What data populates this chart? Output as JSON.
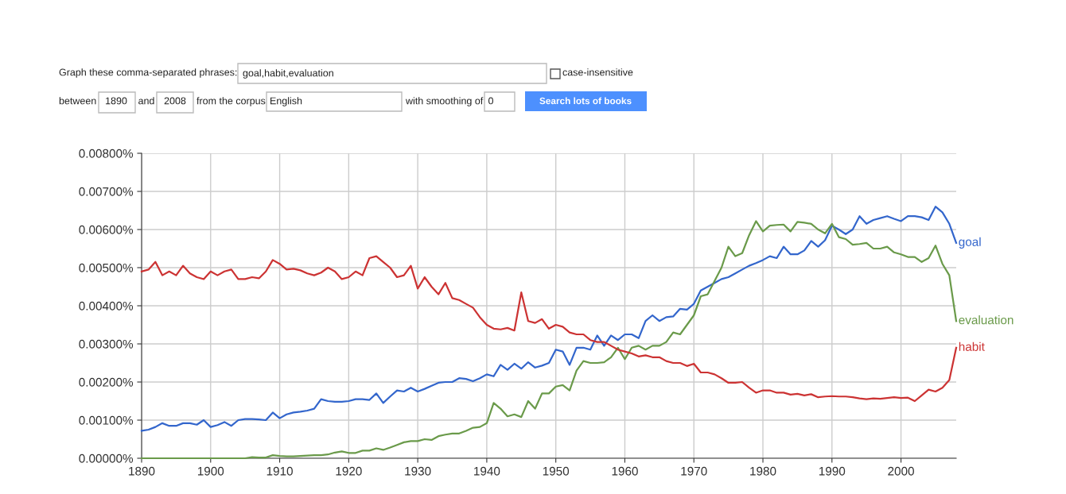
{
  "chart_data": {
    "type": "line",
    "x": [
      1890,
      1891,
      1892,
      1893,
      1894,
      1895,
      1896,
      1897,
      1898,
      1899,
      1900,
      1901,
      1902,
      1903,
      1904,
      1905,
      1906,
      1907,
      1908,
      1909,
      1910,
      1911,
      1912,
      1913,
      1914,
      1915,
      1916,
      1917,
      1918,
      1919,
      1920,
      1921,
      1922,
      1923,
      1924,
      1925,
      1926,
      1927,
      1928,
      1929,
      1930,
      1931,
      1932,
      1933,
      1934,
      1935,
      1936,
      1937,
      1938,
      1939,
      1940,
      1941,
      1942,
      1943,
      1944,
      1945,
      1946,
      1947,
      1948,
      1949,
      1950,
      1951,
      1952,
      1953,
      1954,
      1955,
      1956,
      1957,
      1958,
      1959,
      1960,
      1961,
      1962,
      1963,
      1964,
      1965,
      1966,
      1967,
      1968,
      1969,
      1970,
      1971,
      1972,
      1973,
      1974,
      1975,
      1976,
      1977,
      1978,
      1979,
      1980,
      1981,
      1982,
      1983,
      1984,
      1985,
      1986,
      1987,
      1988,
      1989,
      1990,
      1991,
      1992,
      1993,
      1994,
      1995,
      1996,
      1997,
      1998,
      1999,
      2000,
      2001,
      2002,
      2003,
      2004,
      2005,
      2006,
      2007,
      2008
    ],
    "series": [
      {
        "name": "goal",
        "color": "#3366cc",
        "values": [
          0.00072,
          0.00075,
          0.00082,
          0.00092,
          0.00085,
          0.00085,
          0.00092,
          0.00092,
          0.00088,
          0.001,
          0.00082,
          0.00087,
          0.00095,
          0.00085,
          0.001,
          0.00103,
          0.00103,
          0.00102,
          0.001,
          0.0012,
          0.00105,
          0.00115,
          0.0012,
          0.00122,
          0.00125,
          0.0013,
          0.00155,
          0.0015,
          0.00148,
          0.00148,
          0.0015,
          0.00155,
          0.00155,
          0.00153,
          0.0017,
          0.00145,
          0.00162,
          0.00178,
          0.00175,
          0.00185,
          0.00175,
          0.00182,
          0.0019,
          0.00198,
          0.002,
          0.002,
          0.0021,
          0.00208,
          0.00202,
          0.0021,
          0.0022,
          0.00215,
          0.00245,
          0.00232,
          0.00248,
          0.00235,
          0.00252,
          0.00238,
          0.00243,
          0.0025,
          0.00285,
          0.0028,
          0.00245,
          0.0029,
          0.0029,
          0.00285,
          0.00322,
          0.00295,
          0.00322,
          0.0031,
          0.00325,
          0.00325,
          0.00315,
          0.0036,
          0.00375,
          0.0036,
          0.0037,
          0.00372,
          0.00392,
          0.0039,
          0.00405,
          0.0044,
          0.0045,
          0.0046,
          0.0047,
          0.00475,
          0.00485,
          0.00495,
          0.00505,
          0.00512,
          0.0052,
          0.0053,
          0.00525,
          0.00555,
          0.00535,
          0.00535,
          0.00545,
          0.0057,
          0.00555,
          0.00572,
          0.0061,
          0.006,
          0.00588,
          0.006,
          0.00635,
          0.00615,
          0.00625,
          0.0063,
          0.00635,
          0.00628,
          0.00622,
          0.00635,
          0.00635,
          0.00632,
          0.00625,
          0.0066,
          0.00645,
          0.00615,
          0.00565
        ]
      },
      {
        "name": "evaluation",
        "color": "#6a9a4a",
        "values": [
          0,
          0,
          0,
          0,
          0,
          0,
          0,
          0,
          0,
          0,
          0,
          0,
          0,
          0,
          0,
          0,
          3e-05,
          2e-05,
          2e-05,
          8e-05,
          6e-05,
          5e-05,
          5e-05,
          6e-05,
          7e-05,
          8e-05,
          8e-05,
          0.0001,
          0.00015,
          0.00018,
          0.00014,
          0.00014,
          0.0002,
          0.0002,
          0.00026,
          0.00022,
          0.00028,
          0.00035,
          0.00042,
          0.00045,
          0.00045,
          0.0005,
          0.00048,
          0.00058,
          0.00062,
          0.00065,
          0.00065,
          0.00072,
          0.0008,
          0.00082,
          0.00092,
          0.00145,
          0.0013,
          0.0011,
          0.00115,
          0.00108,
          0.0015,
          0.0013,
          0.0017,
          0.0017,
          0.00188,
          0.00192,
          0.00178,
          0.0023,
          0.00255,
          0.0025,
          0.0025,
          0.00252,
          0.00265,
          0.0029,
          0.0026,
          0.0029,
          0.00295,
          0.00285,
          0.00295,
          0.00295,
          0.00305,
          0.0033,
          0.00325,
          0.0035,
          0.00375,
          0.00425,
          0.0043,
          0.00465,
          0.005,
          0.00555,
          0.0053,
          0.00538,
          0.00585,
          0.00622,
          0.00595,
          0.0061,
          0.00612,
          0.00613,
          0.00595,
          0.0062,
          0.00618,
          0.00615,
          0.006,
          0.0059,
          0.00615,
          0.0058,
          0.00575,
          0.0056,
          0.00562,
          0.00565,
          0.0055,
          0.0055,
          0.00555,
          0.0054,
          0.00535,
          0.00528,
          0.00528,
          0.00515,
          0.00525,
          0.00558,
          0.0051,
          0.0048,
          0.0036
        ]
      },
      {
        "name": "habit",
        "color": "#cc3333",
        "values": [
          0.0049,
          0.00495,
          0.00515,
          0.0048,
          0.0049,
          0.0048,
          0.00505,
          0.00485,
          0.00475,
          0.0047,
          0.0049,
          0.0048,
          0.0049,
          0.00495,
          0.0047,
          0.0047,
          0.00475,
          0.00472,
          0.0049,
          0.0052,
          0.0051,
          0.00495,
          0.00497,
          0.00493,
          0.00485,
          0.0048,
          0.00487,
          0.005,
          0.0049,
          0.0047,
          0.00475,
          0.0049,
          0.0048,
          0.00525,
          0.0053,
          0.00515,
          0.005,
          0.00475,
          0.0048,
          0.00505,
          0.00445,
          0.00475,
          0.0045,
          0.0043,
          0.0046,
          0.0042,
          0.00415,
          0.00405,
          0.00395,
          0.0037,
          0.0035,
          0.0034,
          0.00338,
          0.00342,
          0.00335,
          0.00435,
          0.0036,
          0.00355,
          0.00365,
          0.0034,
          0.0035,
          0.00345,
          0.0033,
          0.00325,
          0.00325,
          0.0031,
          0.00305,
          0.00305,
          0.00295,
          0.00285,
          0.0028,
          0.00275,
          0.00267,
          0.0027,
          0.00265,
          0.00265,
          0.00255,
          0.0025,
          0.0025,
          0.00242,
          0.00248,
          0.00225,
          0.00225,
          0.0022,
          0.0021,
          0.00198,
          0.00198,
          0.002,
          0.00185,
          0.00172,
          0.00178,
          0.00178,
          0.00172,
          0.00172,
          0.00167,
          0.00169,
          0.00165,
          0.00168,
          0.0016,
          0.00162,
          0.00163,
          0.00162,
          0.00162,
          0.0016,
          0.00157,
          0.00155,
          0.00157,
          0.00156,
          0.00158,
          0.0016,
          0.00158,
          0.00159,
          0.0015,
          0.00165,
          0.0018,
          0.00175,
          0.00185,
          0.00205,
          0.0029
        ]
      }
    ],
    "xlim": [
      1890,
      2008
    ],
    "ylim": [
      0,
      0.008
    ],
    "xticks": [
      1890,
      1900,
      1910,
      1920,
      1930,
      1940,
      1950,
      1960,
      1970,
      1980,
      1990,
      2000
    ],
    "yticks": [
      {
        "value": 0,
        "label": "0.00000%"
      },
      {
        "value": 0.001,
        "label": "0.00100%"
      },
      {
        "value": 0.002,
        "label": "0.00200%"
      },
      {
        "value": 0.003,
        "label": "0.00300%"
      },
      {
        "value": 0.004,
        "label": "0.00400%"
      },
      {
        "value": 0.005,
        "label": "0.00500%"
      },
      {
        "value": 0.006,
        "label": "0.00600%"
      },
      {
        "value": 0.007,
        "label": "0.00700%"
      },
      {
        "value": 0.008,
        "label": "0.00800%"
      }
    ],
    "grid": true,
    "legend": false,
    "marker": "none",
    "line_style": "solid",
    "annotations": [
      "Graph these comma-separated phrases:",
      "goal,habit,evaluation",
      "case-insensitive",
      "between",
      "1890",
      "and",
      "2008",
      "from the corpus",
      "English",
      "with smoothing of",
      "0",
      "Search lots of books"
    ]
  }
}
